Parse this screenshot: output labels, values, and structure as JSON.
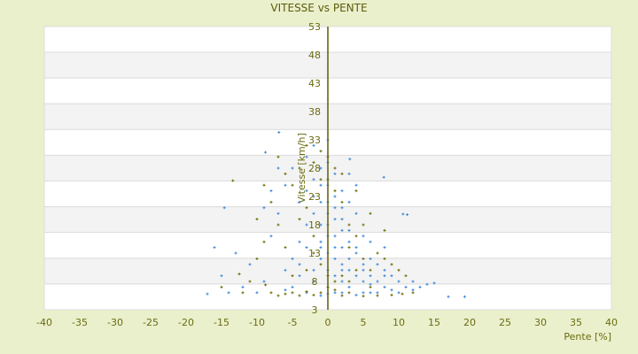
{
  "chart_data": {
    "type": "scatter",
    "title": "VITESSE vs PENTE",
    "xlabel": "Pente [%]",
    "ylabel": "Vitesse [km/h]",
    "xlim": [
      -40,
      40
    ],
    "ylim": [
      3,
      53
    ],
    "xticks": [
      -40,
      -35,
      -30,
      -25,
      -20,
      -15,
      -10,
      -5,
      0,
      5,
      10,
      15,
      20,
      25,
      30,
      35,
      40
    ],
    "yticks": [
      53,
      48,
      43,
      38,
      33,
      28,
      23,
      18,
      13,
      8,
      3
    ],
    "grid": true,
    "legend": "none",
    "marker": "plus",
    "series": [
      {
        "color": "#3a87d6",
        "points": [
          [
            -2,
            20
          ],
          [
            -1,
            22
          ],
          [
            0,
            18
          ],
          [
            1,
            16
          ],
          [
            2,
            14
          ],
          [
            3,
            12
          ],
          [
            -1,
            15
          ],
          [
            0,
            25
          ],
          [
            1,
            21
          ],
          [
            2,
            19
          ],
          [
            3,
            17
          ],
          [
            4,
            13
          ],
          [
            5,
            11
          ],
          [
            -2,
            26
          ],
          [
            -3,
            18
          ],
          [
            -1,
            12
          ],
          [
            0,
            10
          ],
          [
            1,
            9
          ],
          [
            2,
            8
          ],
          [
            3,
            10
          ],
          [
            4,
            9
          ],
          [
            5,
            8
          ],
          [
            6,
            9
          ],
          [
            7,
            8
          ],
          [
            8,
            10
          ],
          [
            6,
            12
          ],
          [
            7,
            11
          ],
          [
            9,
            9
          ],
          [
            10,
            8
          ],
          [
            11,
            7
          ],
          [
            12,
            6.5
          ],
          [
            -4,
            15
          ],
          [
            -5,
            12
          ],
          [
            -6,
            10
          ],
          [
            -7,
            20
          ],
          [
            -8,
            16
          ],
          [
            -9,
            8
          ],
          [
            -10,
            6
          ],
          [
            -6,
            25
          ],
          [
            -5,
            28
          ],
          [
            -3,
            30
          ],
          [
            -2,
            32
          ],
          [
            0,
            33
          ],
          [
            -1,
            28
          ],
          [
            2,
            24
          ],
          [
            3,
            22
          ],
          [
            4,
            20
          ],
          [
            5,
            16
          ],
          [
            6,
            15
          ],
          [
            8,
            14
          ],
          [
            -4,
            22
          ],
          [
            -3,
            24
          ],
          [
            1,
            27
          ],
          [
            0,
            29
          ],
          [
            -12,
            7
          ],
          [
            -11,
            11
          ],
          [
            -13,
            13
          ],
          [
            -14,
            6
          ],
          [
            -15,
            9
          ],
          [
            -8,
            24
          ],
          [
            -7,
            28
          ],
          [
            -9,
            21
          ],
          [
            4,
            25
          ],
          [
            3,
            27
          ],
          [
            1,
            6
          ],
          [
            0,
            7
          ],
          [
            -2,
            8
          ],
          [
            -4,
            9
          ],
          [
            2,
            11
          ],
          [
            0,
            13
          ],
          [
            1,
            12
          ],
          [
            -1,
            18
          ],
          [
            0,
            20
          ],
          [
            1,
            23
          ],
          [
            2,
            17
          ],
          [
            3,
            15
          ],
          [
            4,
            14
          ],
          [
            2,
            6
          ],
          [
            3,
            7
          ],
          [
            5,
            6
          ],
          [
            6,
            6
          ],
          [
            7,
            6
          ],
          [
            8,
            7
          ],
          [
            9,
            6.5
          ],
          [
            10,
            6
          ],
          [
            12,
            8
          ],
          [
            13,
            7
          ],
          [
            14,
            7.5
          ],
          [
            15,
            7.7
          ],
          [
            17,
            5.3
          ],
          [
            19.3,
            5.3
          ],
          [
            -17,
            5.8
          ],
          [
            -16,
            14
          ],
          [
            -14.6,
            21
          ],
          [
            -8.8,
            30.8
          ],
          [
            -6.9,
            34.3
          ],
          [
            10.6,
            19.9
          ],
          [
            11.2,
            19.8
          ],
          [
            7.9,
            26.4
          ],
          [
            3.1,
            29.6
          ],
          [
            -3,
            6
          ],
          [
            -5,
            7
          ],
          [
            -6,
            6.5
          ],
          [
            -1,
            5.5
          ],
          [
            0,
            5.8
          ],
          [
            4,
            5.6
          ],
          [
            6,
            7.5
          ],
          [
            8,
            9
          ],
          [
            5,
            10
          ],
          [
            -2,
            10
          ],
          [
            -1,
            14
          ],
          [
            0,
            16
          ],
          [
            1,
            19
          ],
          [
            2,
            21
          ],
          [
            -3,
            14
          ],
          [
            -4,
            11
          ],
          [
            -2,
            23
          ],
          [
            -1,
            25
          ],
          [
            0,
            22
          ],
          [
            1,
            14
          ],
          [
            2,
            10
          ]
        ]
      },
      {
        "color": "#6b6b00",
        "points": [
          [
            -13.4,
            25.8
          ],
          [
            -15,
            7
          ],
          [
            -12.5,
            9.3
          ],
          [
            -10,
            12
          ],
          [
            -9,
            15
          ],
          [
            -8.8,
            7.4
          ],
          [
            -8,
            6
          ],
          [
            -7,
            5.5
          ],
          [
            -6,
            5.8
          ],
          [
            -5,
            6
          ],
          [
            -4,
            5.5
          ],
          [
            -3,
            6.2
          ],
          [
            -2,
            5.6
          ],
          [
            -1,
            6
          ],
          [
            0,
            7
          ],
          [
            1,
            6.5
          ],
          [
            2,
            5.5
          ],
          [
            3,
            6
          ],
          [
            5,
            5.4
          ],
          [
            7,
            5.5
          ],
          [
            9,
            5.6
          ],
          [
            10.5,
            5.8
          ],
          [
            12,
            6
          ],
          [
            -7,
            30
          ],
          [
            -6,
            27
          ],
          [
            -5,
            25
          ],
          [
            -4,
            28
          ],
          [
            -3,
            32
          ],
          [
            -2,
            29
          ],
          [
            -1,
            26
          ],
          [
            0,
            30
          ],
          [
            1,
            24
          ],
          [
            2,
            27
          ],
          [
            -8,
            22
          ],
          [
            -7,
            18
          ],
          [
            -6,
            14
          ],
          [
            -5,
            9
          ],
          [
            -4,
            19
          ],
          [
            -3,
            21
          ],
          [
            -2,
            16
          ],
          [
            -1,
            11
          ],
          [
            0,
            9
          ],
          [
            1,
            8
          ],
          [
            2,
            9
          ],
          [
            3,
            8
          ],
          [
            4,
            10
          ],
          [
            5,
            12
          ],
          [
            6,
            10
          ],
          [
            7,
            13
          ],
          [
            8,
            12
          ],
          [
            9,
            11
          ],
          [
            10,
            10
          ],
          [
            11,
            9
          ],
          [
            3,
            18
          ],
          [
            4,
            16
          ],
          [
            5,
            18
          ],
          [
            2,
            22
          ],
          [
            1,
            28
          ],
          [
            0,
            26
          ],
          [
            -1,
            31
          ],
          [
            -9,
            25
          ],
          [
            -10,
            19
          ],
          [
            8,
            17
          ],
          [
            6,
            20
          ],
          [
            3,
            14
          ],
          [
            -2,
            13
          ],
          [
            -3,
            10
          ],
          [
            -11,
            8
          ],
          [
            -12,
            6
          ],
          [
            4,
            24
          ],
          [
            6,
            7
          ]
        ]
      }
    ]
  }
}
